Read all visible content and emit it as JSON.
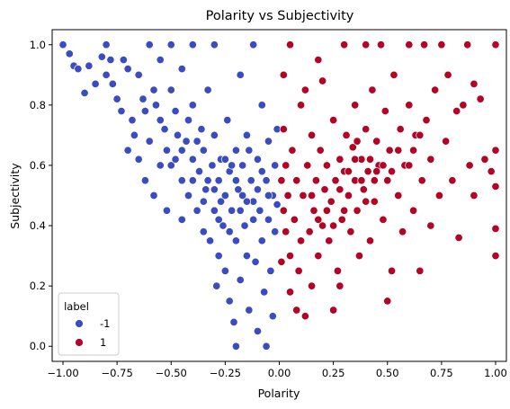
{
  "chart_data": {
    "type": "scatter",
    "title": "Polarity vs Subjectivity",
    "xlabel": "Polarity",
    "ylabel": "Subjectivity",
    "xlim": [
      -1.05,
      1.05
    ],
    "ylim": [
      -0.05,
      1.05
    ],
    "x_ticks": [
      -1.0,
      -0.75,
      -0.5,
      -0.25,
      0.0,
      0.25,
      0.5,
      0.75,
      1.0
    ],
    "x_tick_labels": [
      "−1.00",
      "−0.75",
      "−0.50",
      "−0.25",
      "0.00",
      "0.25",
      "0.50",
      "0.75",
      "1.00"
    ],
    "y_ticks": [
      0.0,
      0.2,
      0.4,
      0.6,
      0.8,
      1.0
    ],
    "y_tick_labels": [
      "0.0",
      "0.2",
      "0.4",
      "0.6",
      "0.8",
      "1.0"
    ],
    "grid": false,
    "legend": {
      "title": "label",
      "placement": "lower-left",
      "entries": [
        {
          "label": "-1",
          "color": "#3b4cc0"
        },
        {
          "label": "1",
          "color": "#b40426"
        }
      ]
    },
    "series": [
      {
        "name": "-1",
        "color": "#3b4cc0",
        "points": [
          [
            -1.0,
            1.0
          ],
          [
            -0.97,
            0.97
          ],
          [
            -0.95,
            0.93
          ],
          [
            -0.93,
            0.92
          ],
          [
            -0.9,
            0.84
          ],
          [
            -0.88,
            0.93
          ],
          [
            -0.85,
            0.87
          ],
          [
            -0.82,
            0.96
          ],
          [
            -0.8,
            1.0
          ],
          [
            -0.8,
            0.9
          ],
          [
            -0.78,
            0.95
          ],
          [
            -0.77,
            0.87
          ],
          [
            -0.75,
            0.82
          ],
          [
            -0.73,
            0.78
          ],
          [
            -0.72,
            0.95
          ],
          [
            -0.7,
            0.92
          ],
          [
            -0.68,
            0.75
          ],
          [
            -0.67,
            0.7
          ],
          [
            -0.65,
            0.9
          ],
          [
            -0.63,
            0.82
          ],
          [
            -0.62,
            0.78
          ],
          [
            -0.6,
            0.68
          ],
          [
            -0.6,
            1.0
          ],
          [
            -0.58,
            0.85
          ],
          [
            -0.57,
            0.8
          ],
          [
            -0.55,
            0.95
          ],
          [
            -0.55,
            0.75
          ],
          [
            -0.53,
            0.72
          ],
          [
            -0.52,
            0.65
          ],
          [
            -0.5,
            1.0
          ],
          [
            -0.5,
            0.85
          ],
          [
            -0.5,
            0.6
          ],
          [
            -0.48,
            0.78
          ],
          [
            -0.47,
            0.7
          ],
          [
            -0.45,
            0.55
          ],
          [
            -0.45,
            0.92
          ],
          [
            -0.43,
            0.68
          ],
          [
            -0.42,
            0.5
          ],
          [
            -0.4,
            0.8
          ],
          [
            -0.4,
            0.62
          ],
          [
            -0.4,
            1.0
          ],
          [
            -0.38,
            0.45
          ],
          [
            -0.37,
            0.58
          ],
          [
            -0.36,
            0.72
          ],
          [
            -0.35,
            0.38
          ],
          [
            -0.35,
            0.65
          ],
          [
            -0.34,
            0.52
          ],
          [
            -0.33,
            0.85
          ],
          [
            -0.32,
            0.35
          ],
          [
            -0.31,
            0.6
          ],
          [
            -0.3,
            0.45
          ],
          [
            -0.3,
            0.7
          ],
          [
            -0.3,
            1.0
          ],
          [
            -0.29,
            0.2
          ],
          [
            -0.28,
            0.55
          ],
          [
            -0.28,
            0.3
          ],
          [
            -0.27,
            0.62
          ],
          [
            -0.26,
            0.4
          ],
          [
            -0.25,
            0.5
          ],
          [
            -0.25,
            0.25
          ],
          [
            -0.24,
            0.75
          ],
          [
            -0.23,
            0.58
          ],
          [
            -0.23,
            0.15
          ],
          [
            -0.22,
            0.45
          ],
          [
            -0.21,
            0.08
          ],
          [
            -0.2,
            0.65
          ],
          [
            -0.2,
            0.35
          ],
          [
            -0.2,
            0.0
          ],
          [
            -0.19,
            0.52
          ],
          [
            -0.18,
            0.22
          ],
          [
            -0.18,
            0.9
          ],
          [
            -0.17,
            0.6
          ],
          [
            -0.16,
            0.4
          ],
          [
            -0.15,
            0.3
          ],
          [
            -0.15,
            0.7
          ],
          [
            -0.14,
            0.12
          ],
          [
            -0.13,
            0.55
          ],
          [
            -0.12,
            0.48
          ],
          [
            -0.12,
            1.0
          ],
          [
            -0.11,
            0.28
          ],
          [
            -0.1,
            0.62
          ],
          [
            -0.1,
            0.05
          ],
          [
            -0.09,
            0.45
          ],
          [
            -0.08,
            0.35
          ],
          [
            -0.08,
            0.8
          ],
          [
            -0.07,
            0.18
          ],
          [
            -0.06,
            0.55
          ],
          [
            -0.06,
            0.0
          ],
          [
            -0.05,
            0.42
          ],
          [
            -0.05,
            0.68
          ],
          [
            -0.04,
            0.25
          ],
          [
            -0.03,
            0.5
          ],
          [
            -0.03,
            0.1
          ],
          [
            -0.02,
            0.6
          ],
          [
            -0.02,
            0.38
          ],
          [
            -0.01,
            0.47
          ],
          [
            -0.01,
            0.72
          ],
          [
            -0.45,
            0.65
          ],
          [
            -0.55,
            0.6
          ],
          [
            -0.42,
            0.75
          ],
          [
            -0.38,
            0.68
          ],
          [
            -0.33,
            0.55
          ],
          [
            -0.27,
            0.48
          ],
          [
            -0.22,
            0.6
          ],
          [
            -0.17,
            0.5
          ],
          [
            -0.14,
            0.65
          ],
          [
            -0.3,
            0.52
          ],
          [
            -0.25,
            0.62
          ],
          [
            -0.35,
            0.48
          ],
          [
            -0.4,
            0.55
          ],
          [
            -0.48,
            0.62
          ],
          [
            -0.52,
            0.45
          ],
          [
            -0.62,
            0.55
          ],
          [
            -0.65,
            0.62
          ],
          [
            -0.7,
            0.65
          ],
          [
            -0.58,
            0.5
          ],
          [
            -0.45,
            0.42
          ],
          [
            -0.2,
            0.55
          ],
          [
            -0.15,
            0.48
          ],
          [
            -0.1,
            0.52
          ],
          [
            -0.08,
            0.58
          ],
          [
            -0.12,
            0.42
          ],
          [
            -0.18,
            0.45
          ],
          [
            -0.23,
            0.38
          ],
          [
            -0.28,
            0.42
          ],
          [
            -0.05,
            0.5
          ]
        ]
      },
      {
        "name": "1",
        "color": "#b40426",
        "points": [
          [
            1.0,
            1.0
          ],
          [
            1.0,
            0.65
          ],
          [
            1.0,
            0.53
          ],
          [
            1.0,
            0.39
          ],
          [
            1.0,
            0.3
          ],
          [
            0.98,
            0.58
          ],
          [
            0.95,
            0.62
          ],
          [
            0.93,
            0.82
          ],
          [
            0.9,
            0.87
          ],
          [
            0.9,
            0.5
          ],
          [
            0.88,
            0.6
          ],
          [
            0.87,
            1.0
          ],
          [
            0.85,
            0.8
          ],
          [
            0.83,
            0.36
          ],
          [
            0.82,
            0.78
          ],
          [
            0.8,
            0.55
          ],
          [
            0.78,
            0.9
          ],
          [
            0.77,
            0.68
          ],
          [
            0.75,
            1.0
          ],
          [
            0.74,
            0.5
          ],
          [
            0.72,
            0.85
          ],
          [
            0.7,
            0.62
          ],
          [
            0.7,
            0.4
          ],
          [
            0.68,
            0.75
          ],
          [
            0.67,
            1.0
          ],
          [
            0.66,
            0.55
          ],
          [
            0.65,
            0.25
          ],
          [
            0.63,
            0.7
          ],
          [
            0.62,
            0.45
          ],
          [
            0.6,
            0.8
          ],
          [
            0.6,
            1.0
          ],
          [
            0.58,
            0.6
          ],
          [
            0.57,
            0.38
          ],
          [
            0.56,
            0.72
          ],
          [
            0.55,
            0.5
          ],
          [
            0.53,
            0.9
          ],
          [
            0.52,
            0.25
          ],
          [
            0.51,
            0.65
          ],
          [
            0.5,
            0.15
          ],
          [
            0.5,
            0.55
          ],
          [
            0.49,
            0.78
          ],
          [
            0.48,
            0.42
          ],
          [
            0.47,
            1.0
          ],
          [
            0.46,
            0.6
          ],
          [
            0.45,
            0.68
          ],
          [
            0.44,
            0.48
          ],
          [
            0.43,
            0.85
          ],
          [
            0.42,
            0.35
          ],
          [
            0.41,
            0.58
          ],
          [
            0.4,
            0.72
          ],
          [
            0.4,
            1.0
          ],
          [
            0.39,
            0.52
          ],
          [
            0.38,
            0.62
          ],
          [
            0.37,
            0.3
          ],
          [
            0.36,
            0.45
          ],
          [
            0.35,
            0.8
          ],
          [
            0.35,
            0.55
          ],
          [
            0.34,
            0.66
          ],
          [
            0.33,
            0.38
          ],
          [
            0.32,
            0.5
          ],
          [
            0.31,
            0.7
          ],
          [
            0.3,
            0.58
          ],
          [
            0.3,
            1.0
          ],
          [
            0.29,
            0.42
          ],
          [
            0.28,
            0.62
          ],
          [
            0.27,
            0.25
          ],
          [
            0.26,
            0.55
          ],
          [
            0.25,
            0.75
          ],
          [
            0.24,
            0.48
          ],
          [
            0.23,
            0.35
          ],
          [
            0.22,
            0.6
          ],
          [
            0.21,
            0.52
          ],
          [
            0.2,
            0.4
          ],
          [
            0.2,
            0.88
          ],
          [
            0.19,
            0.65
          ],
          [
            0.18,
            0.3
          ],
          [
            0.17,
            0.55
          ],
          [
            0.16,
            0.45
          ],
          [
            0.15,
            0.2
          ],
          [
            0.15,
            0.7
          ],
          [
            0.14,
            0.38
          ],
          [
            0.13,
            0.6
          ],
          [
            0.12,
            0.1
          ],
          [
            0.11,
            0.5
          ],
          [
            0.1,
            0.35
          ],
          [
            0.1,
            0.8
          ],
          [
            0.09,
            0.25
          ],
          [
            0.08,
            0.55
          ],
          [
            0.07,
            0.42
          ],
          [
            0.06,
            0.65
          ],
          [
            0.05,
            0.3
          ],
          [
            0.05,
            0.18
          ],
          [
            0.04,
            0.5
          ],
          [
            0.03,
            0.6
          ],
          [
            0.03,
            0.38
          ],
          [
            0.02,
            0.72
          ],
          [
            0.02,
            0.45
          ],
          [
            0.01,
            0.55
          ],
          [
            0.01,
            0.28
          ],
          [
            0.02,
            0.9
          ],
          [
            0.05,
            1.0
          ],
          [
            0.08,
            0.12
          ],
          [
            0.12,
            0.85
          ],
          [
            0.18,
            0.95
          ],
          [
            0.25,
            0.12
          ],
          [
            0.28,
            0.2
          ],
          [
            0.45,
            0.58
          ],
          [
            0.42,
            0.62
          ],
          [
            0.48,
            0.6
          ],
          [
            0.38,
            0.55
          ],
          [
            0.35,
            0.62
          ],
          [
            0.52,
            0.58
          ],
          [
            0.55,
            0.65
          ],
          [
            0.6,
            0.6
          ],
          [
            0.32,
            0.58
          ],
          [
            0.28,
            0.52
          ],
          [
            0.44,
            0.55
          ],
          [
            0.4,
            0.48
          ],
          [
            0.36,
            0.68
          ],
          [
            0.22,
            0.45
          ],
          [
            0.18,
            0.42
          ],
          [
            0.25,
            0.4
          ],
          [
            0.3,
            0.45
          ],
          [
            0.15,
            0.5
          ],
          [
            0.62,
            0.65
          ],
          [
            0.65,
            0.7
          ]
        ]
      }
    ]
  }
}
